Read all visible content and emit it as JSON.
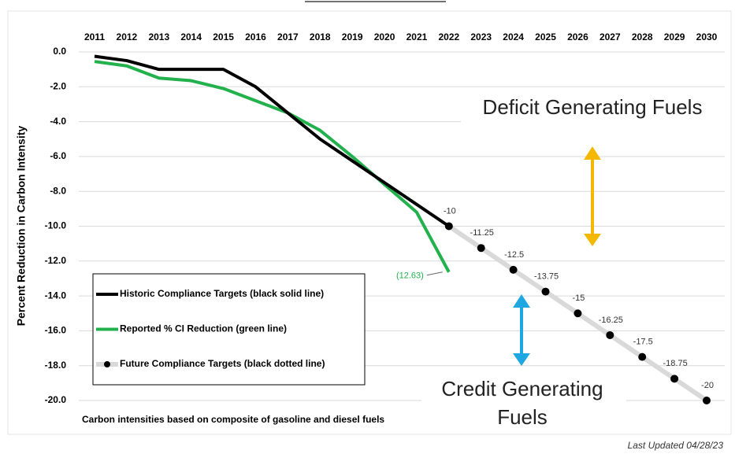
{
  "chart_data": {
    "type": "line",
    "y_label": "Percent Reduction in Carbon Intensity",
    "footnote": "Carbon intensities based on composite of gasoline and diesel fuels",
    "annotations": [
      "Deficit Generating Fuels",
      "Credit Generating",
      "Fuels"
    ],
    "updated": "Last Updated 04/28/23",
    "categories": [
      "2011",
      "2012",
      "2013",
      "2014",
      "2015",
      "2016",
      "2017",
      "2018",
      "2019",
      "2020",
      "2021",
      "2022",
      "2023",
      "2024",
      "2025",
      "2026",
      "2027",
      "2028",
      "2029",
      "2030"
    ],
    "series": [
      {
        "name": "Historic Compliance Targets (black solid line)",
        "color": "#000000",
        "values": [
          -0.25,
          -0.5,
          -1.0,
          -1.0,
          -1.0,
          -2.0,
          -3.5,
          -5.0,
          -6.25,
          -7.5,
          -8.75,
          -10,
          null,
          null,
          null,
          null,
          null,
          null,
          null,
          null
        ]
      },
      {
        "name": "Reported % CI Reduction (green line)",
        "color": "#22b14c",
        "values": [
          -0.55,
          -0.8,
          -1.5,
          -1.65,
          -2.1,
          -2.8,
          -3.5,
          -4.5,
          -6.0,
          -7.6,
          -9.2,
          -12.63,
          null,
          null,
          null,
          null,
          null,
          null,
          null,
          null
        ],
        "value_labels": [
          null,
          null,
          null,
          null,
          null,
          null,
          null,
          null,
          null,
          null,
          null,
          "(12.63)",
          null,
          null,
          null,
          null,
          null,
          null,
          null,
          null
        ]
      },
      {
        "name": "Future Compliance Targets (black dotted line)",
        "color": "#d9d9d9",
        "marker_color": "#000000",
        "values": [
          null,
          null,
          null,
          null,
          null,
          null,
          null,
          null,
          null,
          null,
          null,
          -10,
          -11.25,
          -12.5,
          -13.75,
          -15,
          -16.25,
          -17.5,
          -18.75,
          -20
        ],
        "value_labels": [
          null,
          null,
          null,
          null,
          null,
          null,
          null,
          null,
          null,
          null,
          null,
          "-10",
          "-11.25",
          "-12.5",
          "-13.75",
          "-15",
          "-16.25",
          "-17.5",
          "-18.75",
          "-20"
        ]
      }
    ],
    "ylim": [
      0,
      -20
    ],
    "yticks": [
      {
        "value": 0,
        "label": "0.0"
      },
      {
        "value": -2,
        "label": "-2.0"
      },
      {
        "value": -4,
        "label": "-4.0"
      },
      {
        "value": -6,
        "label": "-6.0"
      },
      {
        "value": -8,
        "label": "-8.0"
      },
      {
        "value": -10,
        "label": "-10.0"
      },
      {
        "value": -12,
        "label": "-12.0"
      },
      {
        "value": -14,
        "label": "-14.0"
      },
      {
        "value": -16,
        "label": "-16.0"
      },
      {
        "value": -18,
        "label": "-18.0"
      },
      {
        "value": -20,
        "label": "-20.0"
      }
    ],
    "grid": true
  }
}
